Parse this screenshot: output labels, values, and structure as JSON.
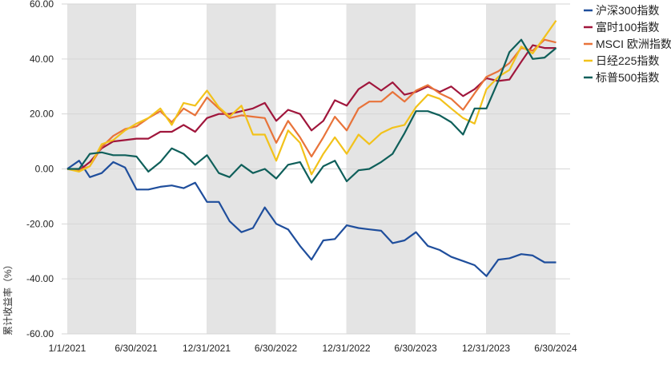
{
  "chart_data": {
    "type": "line",
    "title": "",
    "xlabel": "",
    "ylabel": "累计收益率（%）",
    "ylim": [
      -60,
      60
    ],
    "y_ticks": [
      60,
      40,
      20,
      0,
      -20,
      -40,
      -60
    ],
    "y_tick_labels": [
      "60.00",
      "40.00",
      "20.00",
      "0.00",
      "-20.00",
      "-40.00",
      "-60.00"
    ],
    "x_tick_dates": [
      "2021-01-01",
      "2021-06-30",
      "2021-12-31",
      "2022-06-30",
      "2022-12-31",
      "2023-06-30",
      "2023-12-31",
      "2024-06-30"
    ],
    "x_tick_labels": [
      "1/1/2021",
      "6/30/2021",
      "12/31/2021",
      "6/30/2022",
      "12/31/2022",
      "6/30/2023",
      "12/31/2023",
      "6/30/2024"
    ],
    "shaded_periods": [
      [
        "2021-01-01",
        "2021-06-30"
      ],
      [
        "2021-12-31",
        "2022-06-30"
      ],
      [
        "2022-12-31",
        "2023-06-30"
      ],
      [
        "2023-12-31",
        "2024-06-30"
      ]
    ],
    "grid": "horizontal",
    "legend_position": "top-right",
    "x": [
      "2021-01",
      "2021-02",
      "2021-03",
      "2021-04",
      "2021-05",
      "2021-06",
      "2021-07",
      "2021-08",
      "2021-09",
      "2021-10",
      "2021-11",
      "2021-12",
      "2022-01",
      "2022-02",
      "2022-03",
      "2022-04",
      "2022-05",
      "2022-06",
      "2022-07",
      "2022-08",
      "2022-09",
      "2022-10",
      "2022-11",
      "2022-12",
      "2023-01",
      "2023-02",
      "2023-03",
      "2023-04",
      "2023-05",
      "2023-06",
      "2023-07",
      "2023-08",
      "2023-09",
      "2023-10",
      "2023-11",
      "2023-12",
      "2024-01",
      "2024-02",
      "2024-03",
      "2024-04",
      "2024-05",
      "2024-06",
      "2024-07"
    ],
    "series": [
      {
        "name": "沪深300指数",
        "color": "#1f4e9c",
        "values": [
          0,
          3,
          -3,
          -1.5,
          2.5,
          0.5,
          -7.5,
          -7.5,
          -6.5,
          -6,
          -7,
          -5,
          -12,
          -12,
          -19,
          -23,
          -21.5,
          -14,
          -20,
          -22,
          -28,
          -33,
          -26,
          -25.5,
          -20.5,
          -21.5,
          -22,
          -22.5,
          -27,
          -26,
          -23,
          -28,
          -29.5,
          -32,
          -33.5,
          -35,
          -39,
          -33,
          -32.5,
          -31,
          -31.5,
          -34,
          -34
        ]
      },
      {
        "name": "富时100指数",
        "color": "#a0163c",
        "values": [
          0,
          -0.5,
          2.5,
          7.5,
          10,
          10.5,
          11,
          11,
          13.5,
          13.5,
          16,
          13.5,
          18.5,
          20,
          20,
          21,
          22,
          24,
          17.5,
          21.5,
          20,
          14,
          17.5,
          25,
          23,
          29,
          31.5,
          28.5,
          31.5,
          27,
          28,
          30,
          28,
          30,
          26.5,
          29,
          33,
          32,
          32.5,
          39,
          45,
          44,
          44
        ]
      },
      {
        "name": "MSCI 欧洲指数",
        "color": "#e8733a",
        "values": [
          0,
          -0.5,
          1,
          8,
          12,
          14.5,
          15.5,
          18.5,
          21,
          17,
          22,
          19.5,
          26,
          22,
          18.5,
          19.5,
          19,
          18.5,
          9.5,
          17.5,
          11.5,
          4.5,
          11.5,
          19,
          14,
          22,
          24.5,
          24.5,
          28,
          24.5,
          28.5,
          30.5,
          27.5,
          25.5,
          21.5,
          27.5,
          33.5,
          35.5,
          38.5,
          44,
          43,
          47,
          46
        ]
      },
      {
        "name": "日经225指数",
        "color": "#f2c21b",
        "values": [
          0,
          -1,
          1,
          9,
          10.5,
          14,
          16.5,
          18.5,
          22,
          16,
          24,
          23,
          28.5,
          22.5,
          19,
          23,
          12.5,
          12.5,
          3,
          14,
          9.5,
          -2,
          5.5,
          11.5,
          5.5,
          12.5,
          9,
          13,
          15,
          16,
          22.5,
          27,
          25.5,
          22,
          18.5,
          16.5,
          29,
          33.5,
          36,
          44.5,
          42,
          48,
          54
        ]
      },
      {
        "name": "标普500指数",
        "color": "#0f5f5a",
        "values": [
          0,
          0,
          5.5,
          6,
          5,
          5,
          4.5,
          -1,
          2.5,
          7.5,
          5.5,
          1.5,
          5,
          -1.5,
          -3,
          1.5,
          -1.5,
          0,
          -3.5,
          1.5,
          2.5,
          -5,
          1,
          3,
          -4.5,
          -0.5,
          0,
          2.5,
          5.5,
          13,
          21,
          21,
          19.5,
          17,
          12.5,
          22,
          22,
          32,
          42.5,
          47,
          40,
          40.5,
          44
        ]
      }
    ]
  }
}
